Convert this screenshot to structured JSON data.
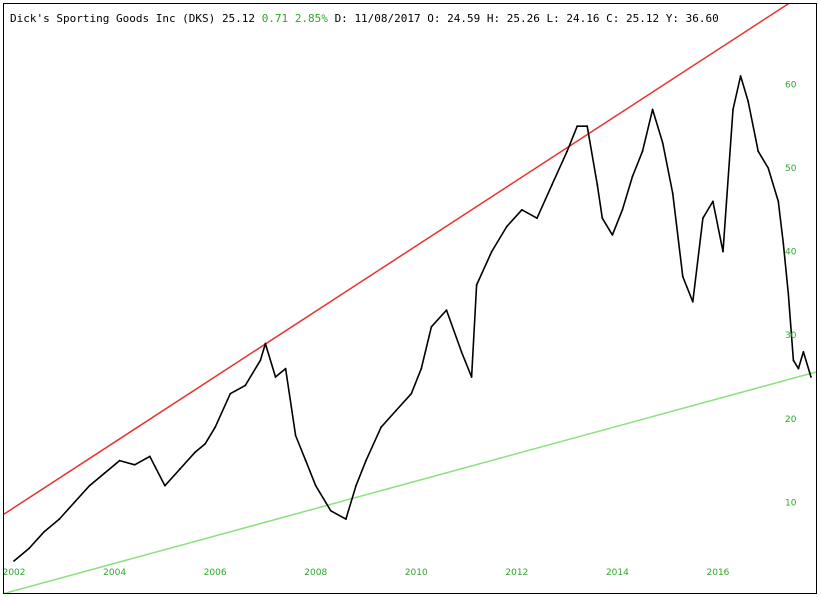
{
  "header": {
    "title": "Dick's Sporting Goods Inc (DKS)",
    "last": "25.12",
    "change": "0.71",
    "change_pct": "2.85%",
    "date_label": "D:",
    "date": "11/08/2017",
    "open_label": "O:",
    "open": "24.59",
    "high_label": "H:",
    "high": "25.26",
    "low_label": "L:",
    "low": "24.16",
    "close_label": "C:",
    "close": "25.12",
    "y_label": "Y:",
    "y": "36.60"
  },
  "colors": {
    "price_line": "#000000",
    "resistance_line": "#e8322e",
    "support_line": "#8be07e",
    "tick_text": "#2aa82a",
    "positive_change": "#2aa82a"
  },
  "chart_data": {
    "type": "line",
    "title": "Dick's Sporting Goods Inc (DKS)",
    "xlabel": "",
    "ylabel": "",
    "x_ticks": [
      "2002",
      "2004",
      "2006",
      "2008",
      "2010",
      "2012",
      "2014",
      "2016"
    ],
    "y_ticks": [
      10,
      20,
      30,
      40,
      50,
      60
    ],
    "xlim": [
      2001.8,
      2017.95
    ],
    "ylim": [
      0,
      64
    ],
    "grid": false,
    "y_axis_side": "right",
    "series": [
      {
        "x": [
          2002.0,
          2002.3,
          2002.6,
          2002.9,
          2003.2,
          2003.5,
          2003.8,
          2004.1,
          2004.4,
          2004.7,
          2005.0,
          2005.3,
          2005.6,
          2005.8,
          2006.0,
          2006.3,
          2006.6,
          2006.9,
          2007.0,
          2007.2,
          2007.4,
          2007.6,
          2007.8,
          2008.0,
          2008.3,
          2008.6,
          2008.8,
          2009.0,
          2009.3,
          2009.6,
          2009.9,
          2010.1,
          2010.3,
          2010.6,
          2010.9,
          2011.1,
          2011.2,
          2011.5,
          2011.8,
          2012.1,
          2012.4,
          2012.7,
          2013.0,
          2013.2,
          2013.4,
          2013.6,
          2013.7,
          2013.9,
          2014.1,
          2014.3,
          2014.5,
          2014.7,
          2014.9,
          2015.1,
          2015.3,
          2015.5,
          2015.7,
          2015.9,
          2016.1,
          2016.3,
          2016.45,
          2016.6,
          2016.8,
          2017.0,
          2017.2,
          2017.3,
          2017.4,
          2017.5,
          2017.6,
          2017.7,
          2017.85
        ],
        "values": [
          3,
          4.5,
          6.5,
          8,
          10,
          12,
          13.5,
          15,
          14.5,
          15.5,
          12,
          14,
          16,
          17,
          19,
          23,
          24,
          27,
          29,
          25,
          26,
          18,
          15,
          12,
          9,
          8,
          12,
          15,
          19,
          21,
          23,
          26,
          31,
          33,
          28,
          25,
          36,
          40,
          43,
          45,
          44,
          48,
          52,
          55,
          55,
          48,
          44,
          42,
          45,
          49,
          52,
          57,
          53,
          47,
          37,
          34,
          44,
          46,
          40,
          57,
          61,
          58,
          52,
          50,
          46,
          41,
          35,
          27,
          26,
          28,
          25
        ]
      }
    ],
    "trendlines": [
      {
        "from": [
          2001.8,
          8.6
        ],
        "to": [
          2017.95,
          71.8
        ]
      },
      {
        "from": [
          2001.8,
          -0.9
        ],
        "to": [
          2017.95,
          25.6
        ]
      }
    ]
  }
}
